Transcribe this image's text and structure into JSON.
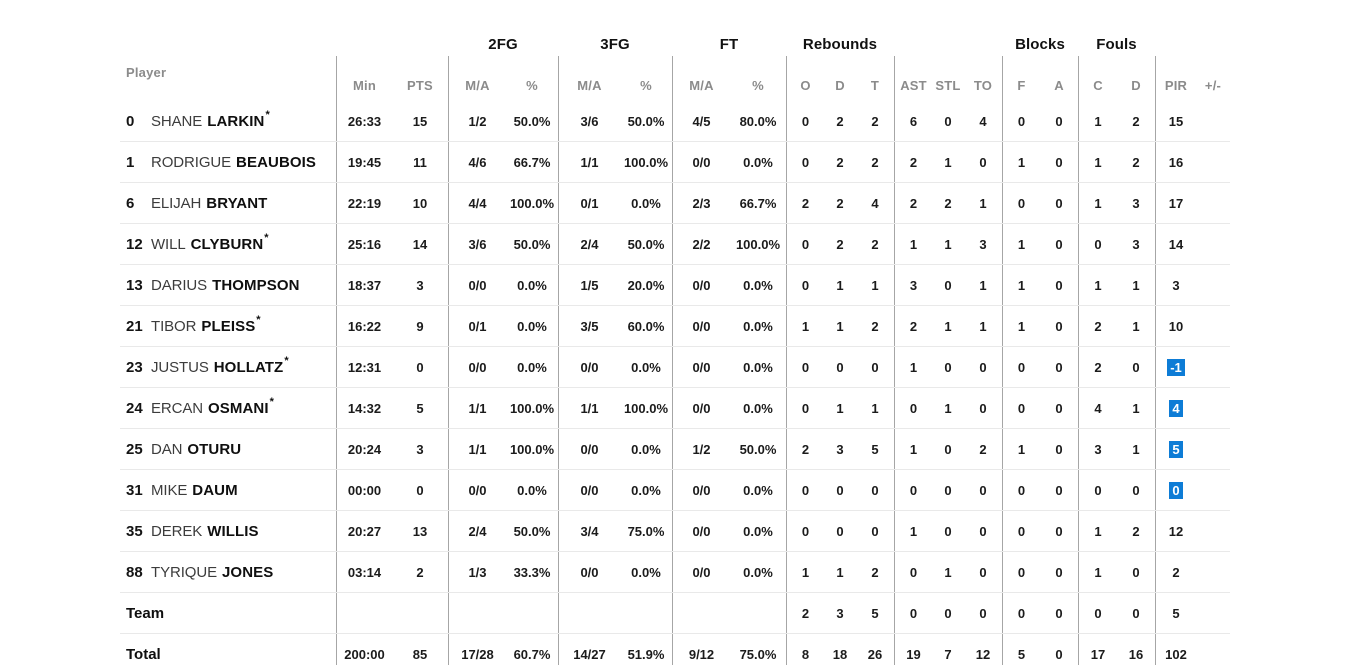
{
  "colors": {
    "pir_highlight_bg": "#0d7cd6",
    "pir_highlight_text": "#ffffff"
  },
  "table": {
    "starter_marker": "*",
    "group_headers": {
      "fg2": "2FG",
      "fg3": "3FG",
      "ft": "FT",
      "rebounds": "Rebounds",
      "blocks": "Blocks",
      "fouls": "Fouls"
    },
    "column_headers": {
      "player": "Player",
      "min": "Min",
      "pts": "PTS",
      "fg2_ma": "M/A",
      "fg2_pct": "%",
      "fg3_ma": "M/A",
      "fg3_pct": "%",
      "ft_ma": "M/A",
      "ft_pct": "%",
      "reb_o": "O",
      "reb_d": "D",
      "reb_t": "T",
      "ast": "AST",
      "stl": "STL",
      "to": "TO",
      "blk_f": "F",
      "blk_a": "A",
      "foul_c": "C",
      "foul_d": "D",
      "pir": "PIR",
      "plus_minus": "+/-"
    },
    "rows": [
      {
        "number": "0",
        "first": "SHANE",
        "last": "LARKIN",
        "starter": true,
        "pir_highlight": false,
        "stats": [
          "26:33",
          "15",
          "1/2",
          "50.0%",
          "3/6",
          "50.0%",
          "4/5",
          "80.0%",
          "0",
          "2",
          "2",
          "6",
          "0",
          "4",
          "0",
          "0",
          "1",
          "2",
          "15",
          ""
        ]
      },
      {
        "number": "1",
        "first": "RODRIGUE",
        "last": "BEAUBOIS",
        "starter": false,
        "pir_highlight": false,
        "stats": [
          "19:45",
          "11",
          "4/6",
          "66.7%",
          "1/1",
          "100.0%",
          "0/0",
          "0.0%",
          "0",
          "2",
          "2",
          "2",
          "1",
          "0",
          "1",
          "0",
          "1",
          "2",
          "16",
          ""
        ]
      },
      {
        "number": "6",
        "first": "ELIJAH",
        "last": "BRYANT",
        "starter": false,
        "pir_highlight": false,
        "stats": [
          "22:19",
          "10",
          "4/4",
          "100.0%",
          "0/1",
          "0.0%",
          "2/3",
          "66.7%",
          "2",
          "2",
          "4",
          "2",
          "2",
          "1",
          "0",
          "0",
          "1",
          "3",
          "17",
          ""
        ]
      },
      {
        "number": "12",
        "first": "WILL",
        "last": "CLYBURN",
        "starter": true,
        "pir_highlight": false,
        "stats": [
          "25:16",
          "14",
          "3/6",
          "50.0%",
          "2/4",
          "50.0%",
          "2/2",
          "100.0%",
          "0",
          "2",
          "2",
          "1",
          "1",
          "3",
          "1",
          "0",
          "0",
          "3",
          "14",
          ""
        ]
      },
      {
        "number": "13",
        "first": "DARIUS",
        "last": "THOMPSON",
        "starter": false,
        "pir_highlight": false,
        "stats": [
          "18:37",
          "3",
          "0/0",
          "0.0%",
          "1/5",
          "20.0%",
          "0/0",
          "0.0%",
          "0",
          "1",
          "1",
          "3",
          "0",
          "1",
          "1",
          "0",
          "1",
          "1",
          "3",
          ""
        ]
      },
      {
        "number": "21",
        "first": "TIBOR",
        "last": "PLEISS",
        "starter": true,
        "pir_highlight": false,
        "stats": [
          "16:22",
          "9",
          "0/1",
          "0.0%",
          "3/5",
          "60.0%",
          "0/0",
          "0.0%",
          "1",
          "1",
          "2",
          "2",
          "1",
          "1",
          "1",
          "0",
          "2",
          "1",
          "10",
          ""
        ]
      },
      {
        "number": "23",
        "first": "JUSTUS",
        "last": "HOLLATZ",
        "starter": true,
        "pir_highlight": true,
        "stats": [
          "12:31",
          "0",
          "0/0",
          "0.0%",
          "0/0",
          "0.0%",
          "0/0",
          "0.0%",
          "0",
          "0",
          "0",
          "1",
          "0",
          "0",
          "0",
          "0",
          "2",
          "0",
          "-1",
          ""
        ]
      },
      {
        "number": "24",
        "first": "ERCAN",
        "last": "OSMANI",
        "starter": true,
        "pir_highlight": true,
        "stats": [
          "14:32",
          "5",
          "1/1",
          "100.0%",
          "1/1",
          "100.0%",
          "0/0",
          "0.0%",
          "0",
          "1",
          "1",
          "0",
          "1",
          "0",
          "0",
          "0",
          "4",
          "1",
          "4",
          ""
        ]
      },
      {
        "number": "25",
        "first": "DAN",
        "last": "OTURU",
        "starter": false,
        "pir_highlight": true,
        "stats": [
          "20:24",
          "3",
          "1/1",
          "100.0%",
          "0/0",
          "0.0%",
          "1/2",
          "50.0%",
          "2",
          "3",
          "5",
          "1",
          "0",
          "2",
          "1",
          "0",
          "3",
          "1",
          "5",
          ""
        ]
      },
      {
        "number": "31",
        "first": "MIKE",
        "last": "DAUM",
        "starter": false,
        "pir_highlight": true,
        "stats": [
          "00:00",
          "0",
          "0/0",
          "0.0%",
          "0/0",
          "0.0%",
          "0/0",
          "0.0%",
          "0",
          "0",
          "0",
          "0",
          "0",
          "0",
          "0",
          "0",
          "0",
          "0",
          "0",
          ""
        ]
      },
      {
        "number": "35",
        "first": "DEREK",
        "last": "WILLIS",
        "starter": false,
        "pir_highlight": false,
        "stats": [
          "20:27",
          "13",
          "2/4",
          "50.0%",
          "3/4",
          "75.0%",
          "0/0",
          "0.0%",
          "0",
          "0",
          "0",
          "1",
          "0",
          "0",
          "0",
          "0",
          "1",
          "2",
          "12",
          ""
        ]
      },
      {
        "number": "88",
        "first": "TYRIQUE",
        "last": "JONES",
        "starter": false,
        "pir_highlight": false,
        "stats": [
          "03:14",
          "2",
          "1/3",
          "33.3%",
          "0/0",
          "0.0%",
          "0/0",
          "0.0%",
          "1",
          "1",
          "2",
          "0",
          "1",
          "0",
          "0",
          "0",
          "1",
          "0",
          "2",
          ""
        ]
      }
    ],
    "team_row": {
      "label": "Team",
      "pir_highlight": false,
      "stats": [
        "",
        "",
        "",
        "",
        "",
        "",
        "",
        "",
        "2",
        "3",
        "5",
        "0",
        "0",
        "0",
        "0",
        "0",
        "0",
        "0",
        "5",
        ""
      ]
    },
    "total_row": {
      "label": "Total",
      "pir_highlight": false,
      "stats": [
        "200:00",
        "85",
        "17/28",
        "60.7%",
        "14/27",
        "51.9%",
        "9/12",
        "75.0%",
        "8",
        "18",
        "26",
        "19",
        "7",
        "12",
        "5",
        "0",
        "17",
        "16",
        "102",
        ""
      ]
    }
  }
}
